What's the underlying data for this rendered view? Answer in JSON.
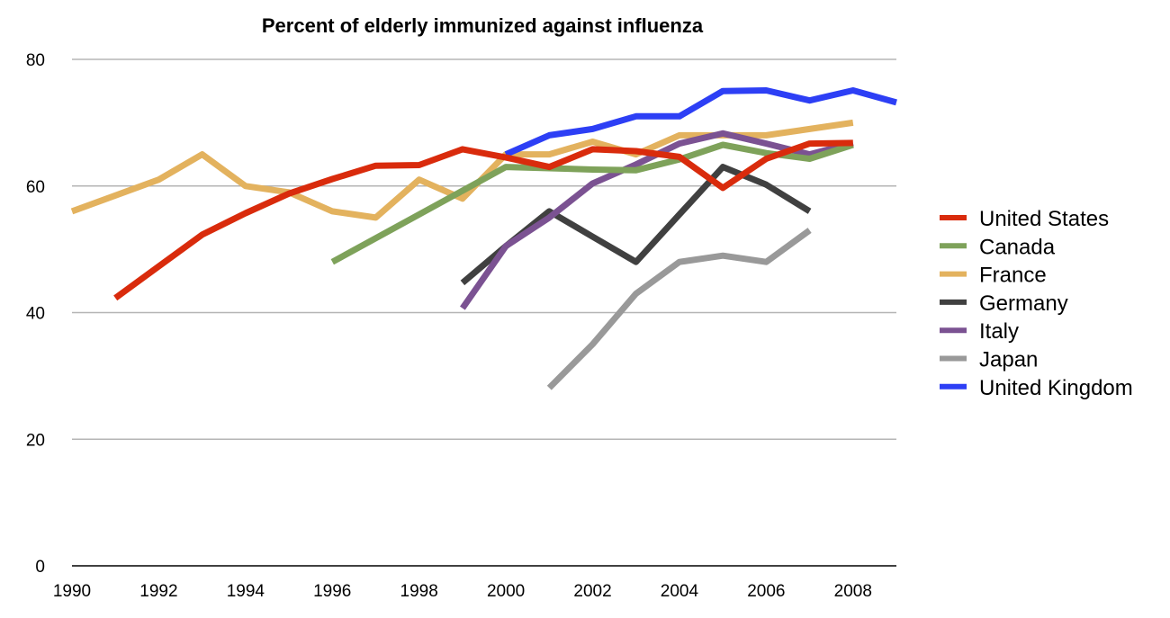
{
  "chart_data": {
    "type": "line",
    "title": "Percent of elderly immunized against influenza",
    "xlabel": "",
    "ylabel": "",
    "x": [
      1990,
      1991,
      1992,
      1993,
      1994,
      1995,
      1996,
      1997,
      1998,
      1999,
      2000,
      2001,
      2002,
      2003,
      2004,
      2005,
      2006,
      2007,
      2008,
      2009
    ],
    "xlim": [
      1990,
      2009
    ],
    "ylim": [
      0,
      80
    ],
    "x_ticks": [
      "1990",
      "1992",
      "1994",
      "1996",
      "1998",
      "2000",
      "2002",
      "2004",
      "2006",
      "2008"
    ],
    "y_ticks": [
      "0",
      "20",
      "40",
      "60",
      "80"
    ],
    "grid": true,
    "legend_position": "right",
    "series": [
      {
        "name": "United States",
        "color": "#d92b0c",
        "values": [
          null,
          42.3,
          47.3,
          52.3,
          55.7,
          58.8,
          61.1,
          63.2,
          63.3,
          65.8,
          64.5,
          63.0,
          65.8,
          65.5,
          64.6,
          59.7,
          64.3,
          66.7,
          66.8,
          null
        ]
      },
      {
        "name": "Canada",
        "color": "#7ea25a",
        "values": [
          null,
          null,
          null,
          null,
          null,
          null,
          48.0,
          null,
          null,
          null,
          63.0,
          62.8,
          62.6,
          62.5,
          64.2,
          66.5,
          65.2,
          64.3,
          66.5,
          null
        ]
      },
      {
        "name": "France",
        "color": "#e3b25e",
        "values": [
          56.0,
          58.5,
          61.0,
          65.0,
          60.0,
          59.0,
          56.0,
          55.0,
          61.0,
          58.0,
          65.0,
          65.0,
          67.0,
          65.0,
          68.0,
          68.0,
          68.0,
          69.0,
          70.0,
          null
        ]
      },
      {
        "name": "Germany",
        "color": "#404040",
        "values": [
          null,
          null,
          null,
          null,
          null,
          null,
          null,
          null,
          null,
          44.7,
          50.5,
          56.0,
          52.0,
          48.0,
          55.5,
          63.0,
          60.2,
          56.0,
          null,
          null
        ]
      },
      {
        "name": "Italy",
        "color": "#7b5292",
        "values": [
          null,
          null,
          null,
          null,
          null,
          null,
          null,
          null,
          null,
          40.7,
          50.5,
          55.0,
          60.4,
          63.4,
          66.7,
          68.3,
          66.7,
          65.0,
          66.8,
          null
        ]
      },
      {
        "name": "Japan",
        "color": "#999999",
        "values": [
          null,
          null,
          null,
          null,
          null,
          null,
          null,
          null,
          null,
          null,
          null,
          28.1,
          35.0,
          43.0,
          48.0,
          49.0,
          48.0,
          53.0,
          null,
          null
        ]
      },
      {
        "name": "United Kingdom",
        "color": "#2d3ff5",
        "values": [
          null,
          null,
          null,
          null,
          null,
          null,
          null,
          null,
          null,
          null,
          65.0,
          68.0,
          69.0,
          71.0,
          71.0,
          75.0,
          75.1,
          73.5,
          75.1,
          73.2
        ]
      }
    ]
  }
}
